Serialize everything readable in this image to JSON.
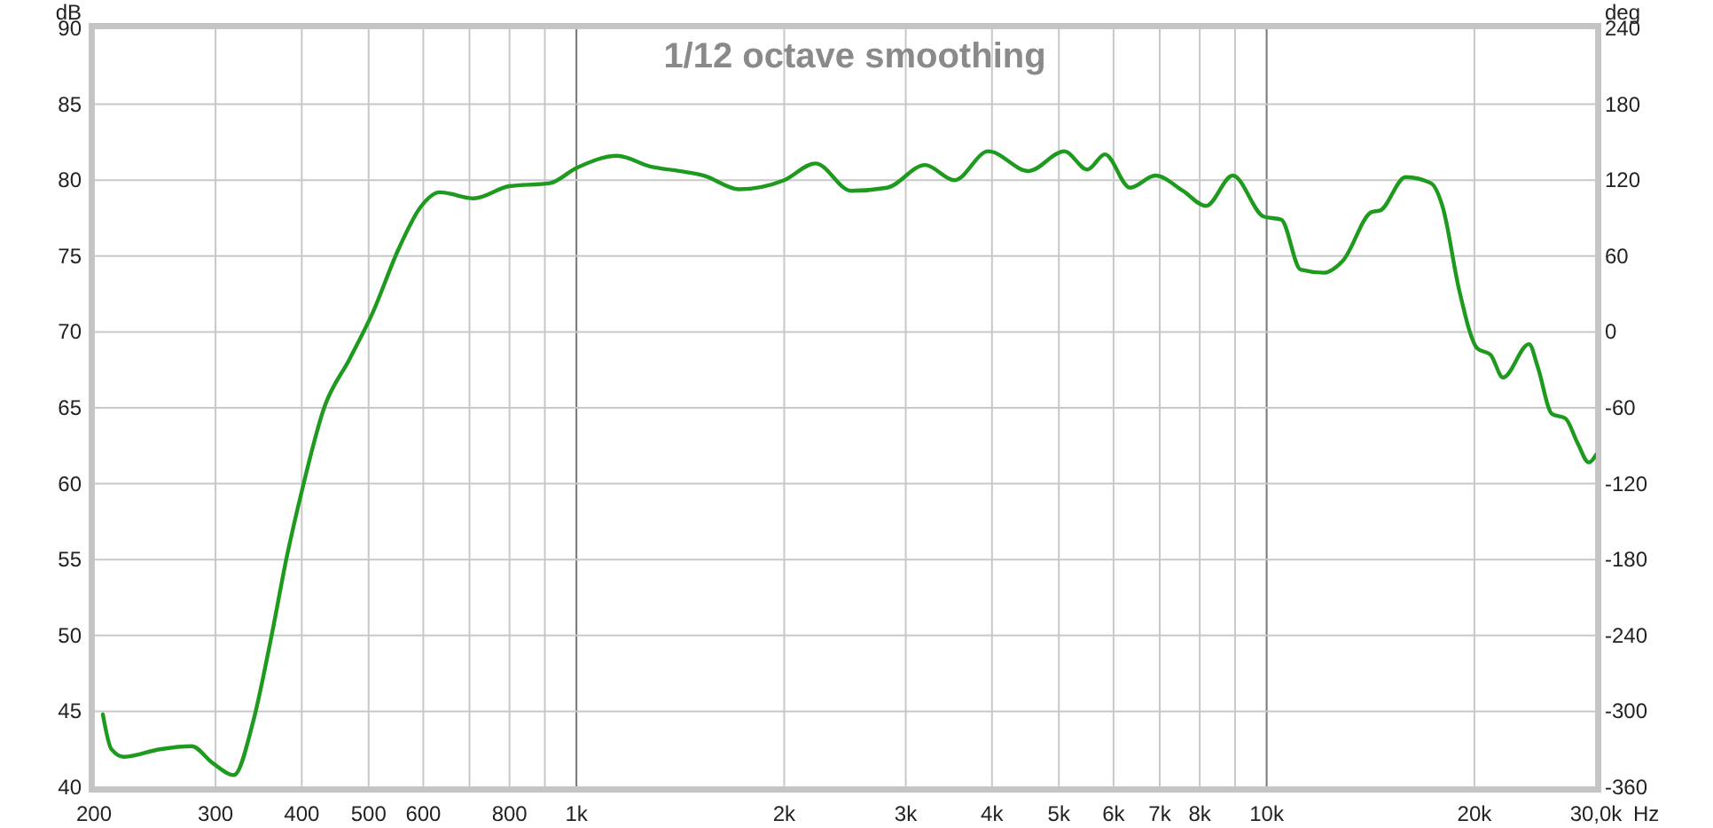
{
  "chart_data": {
    "type": "line",
    "title": "1/12 octave smoothing",
    "xlabel": "Hz",
    "ylabel": "dB",
    "y2label": "deg",
    "log": "x",
    "grid": true,
    "marker": "none",
    "line_style": "solid",
    "xlim": [
      200,
      30000
    ],
    "ylim": [
      40,
      90
    ],
    "y2lim": [
      -360,
      240
    ],
    "xticks": [
      200,
      300,
      400,
      500,
      600,
      {
        "value": 700,
        "label": null
      },
      800,
      {
        "value": 900,
        "label": null
      },
      {
        "value": 1000,
        "label": "1k"
      },
      {
        "value": 2000,
        "label": "2k"
      },
      {
        "value": 3000,
        "label": "3k"
      },
      {
        "value": 4000,
        "label": "4k"
      },
      {
        "value": 5000,
        "label": "5k"
      },
      {
        "value": 6000,
        "label": "6k"
      },
      {
        "value": 7000,
        "label": "7k"
      },
      {
        "value": 8000,
        "label": "8k"
      },
      {
        "value": 9000,
        "label": null
      },
      {
        "value": 10000,
        "label": "10k"
      },
      {
        "value": 20000,
        "label": "20k"
      },
      {
        "value": 30000,
        "label": "30,0k"
      }
    ],
    "yticks": [
      40,
      45,
      50,
      55,
      60,
      65,
      70,
      75,
      80,
      85,
      90
    ],
    "y2ticks": [
      -360,
      -300,
      -240,
      -180,
      -120,
      -60,
      0,
      60,
      120,
      180,
      240
    ],
    "series": [
      {
        "color": "#1e9a1e",
        "x": [
          206,
          212,
          221,
          249,
          277,
          297,
          319,
          340,
          361,
          381,
          400,
          431,
          469,
          506,
          553,
          594,
          634,
          710,
          799,
          915,
          1000,
          1146,
          1280,
          1410,
          1530,
          1720,
          2000,
          2220,
          2500,
          2820,
          3200,
          3530,
          3950,
          4520,
          5090,
          5500,
          5830,
          6340,
          6900,
          7560,
          8170,
          8930,
          9900,
          10500,
          11200,
          12100,
          12900,
          14200,
          14600,
          15900,
          17300,
          18000,
          19000,
          20200,
          21100,
          22000,
          24000,
          24700,
          25900,
          27100,
          28200,
          29300,
          30000
        ],
        "values": [
          44.8,
          42.5,
          42.0,
          42.5,
          42.7,
          41.6,
          40.8,
          44.3,
          49.8,
          55.3,
          59.5,
          65.0,
          68.2,
          71.2,
          75.5,
          78.2,
          79.2,
          78.8,
          79.6,
          79.8,
          80.8,
          81.6,
          80.9,
          80.6,
          80.3,
          79.4,
          80.0,
          81.1,
          79.3,
          79.5,
          81.0,
          80.0,
          81.9,
          80.6,
          81.9,
          80.7,
          81.7,
          79.5,
          80.3,
          79.3,
          78.3,
          80.3,
          77.6,
          77.4,
          74.1,
          73.9,
          74.7,
          77.9,
          78.0,
          80.2,
          79.8,
          78.2,
          72.8,
          68.9,
          68.5,
          67.0,
          69.2,
          67.7,
          64.6,
          64.3,
          62.7,
          61.4,
          61.9
        ]
      }
    ]
  }
}
